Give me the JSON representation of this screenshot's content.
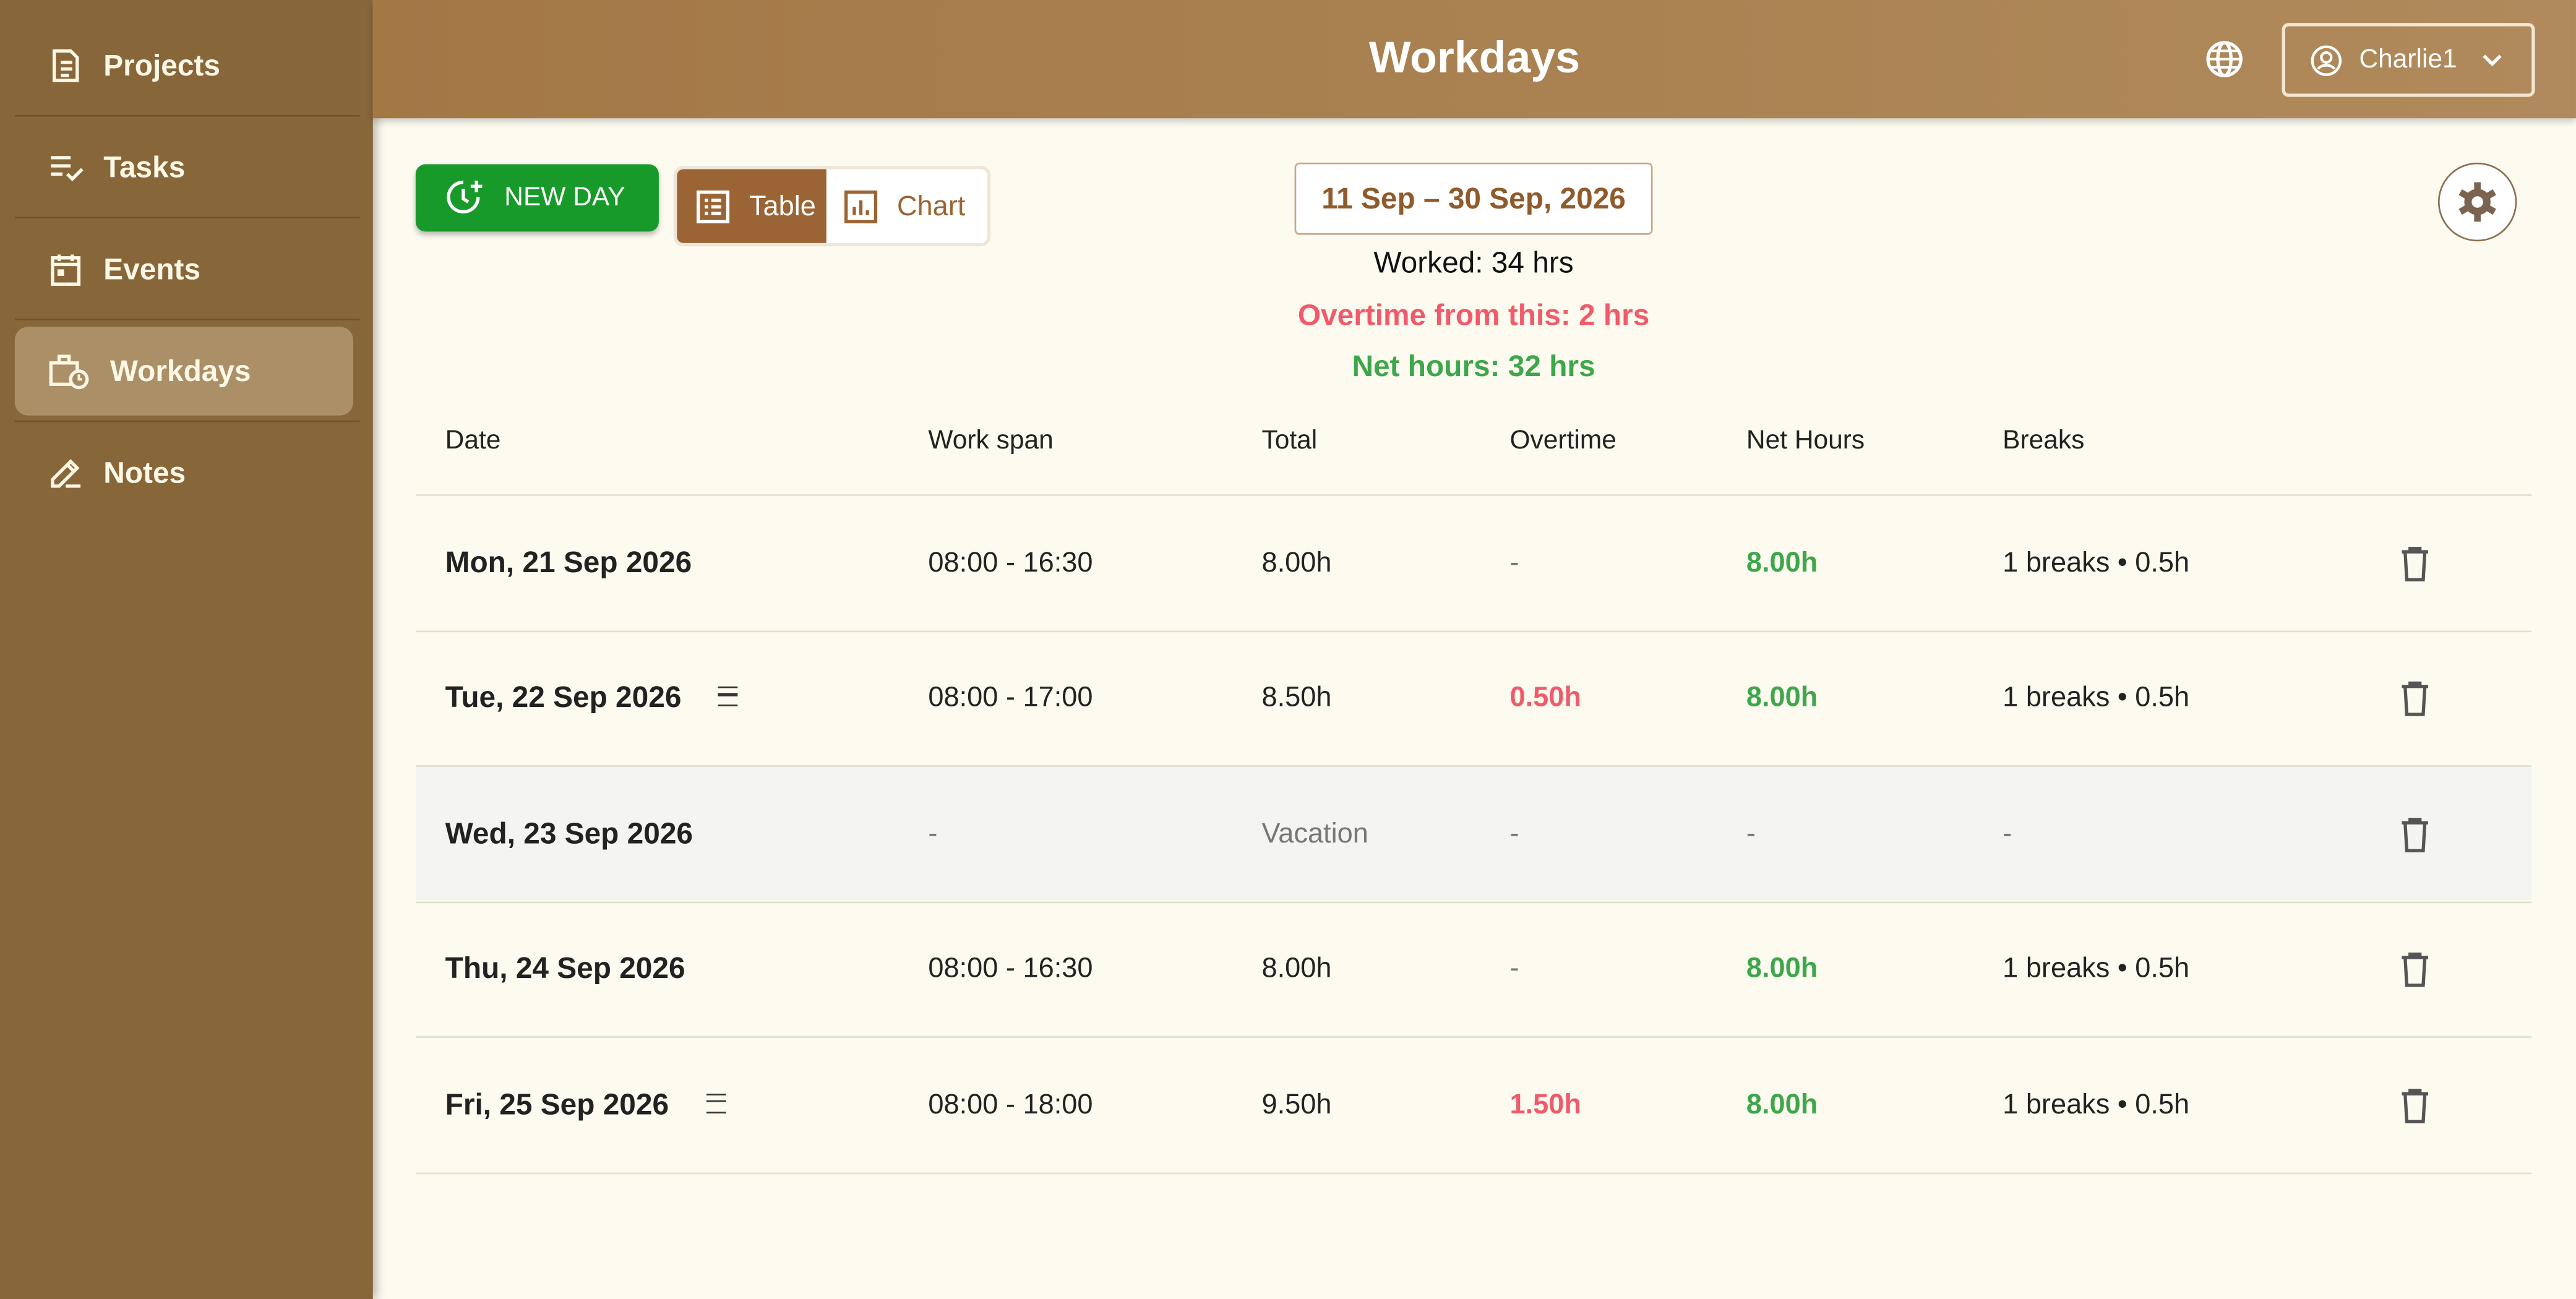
{
  "sidebar": {
    "items": [
      "Projects",
      "Tasks",
      "Events",
      "Workdays",
      "Notes"
    ]
  },
  "header": {
    "title": "Workdays",
    "user": "Charlie1"
  },
  "toolbar": {
    "new_day": "NEW DAY",
    "table": "Table",
    "chart": "Chart"
  },
  "summary": {
    "range": "11 Sep – 30 Sep, 2026",
    "worked": "Worked: 34 hrs",
    "overtime": "Overtime from this: 2 hrs",
    "net": "Net hours: 32 hrs"
  },
  "table": {
    "headers": [
      "Date",
      "Work span",
      "Total",
      "Overtime",
      "Net Hours",
      "Breaks"
    ],
    "rows": [
      [
        "Mon, 21 Sep 2026",
        "08:00 - 16:30",
        "8.00h",
        "-",
        "8.00h",
        "1 breaks • 0.5h"
      ],
      [
        "Tue, 22 Sep 2026",
        "08:00 - 17:00",
        "8.50h",
        "0.50h",
        "8.00h",
        "1 breaks • 0.5h"
      ],
      [
        "Wed, 23 Sep 2026",
        "-",
        "Vacation",
        "-",
        "-",
        "-"
      ],
      [
        "Thu, 24 Sep 2026",
        "08:00 - 16:30",
        "8.00h",
        "-",
        "8.00h",
        "1 breaks • 0.5h"
      ],
      [
        "Fri, 25 Sep 2026",
        "08:00 - 18:00",
        "9.50h",
        "1.50h",
        "8.00h",
        "1 breaks • 0.5h"
      ]
    ]
  }
}
